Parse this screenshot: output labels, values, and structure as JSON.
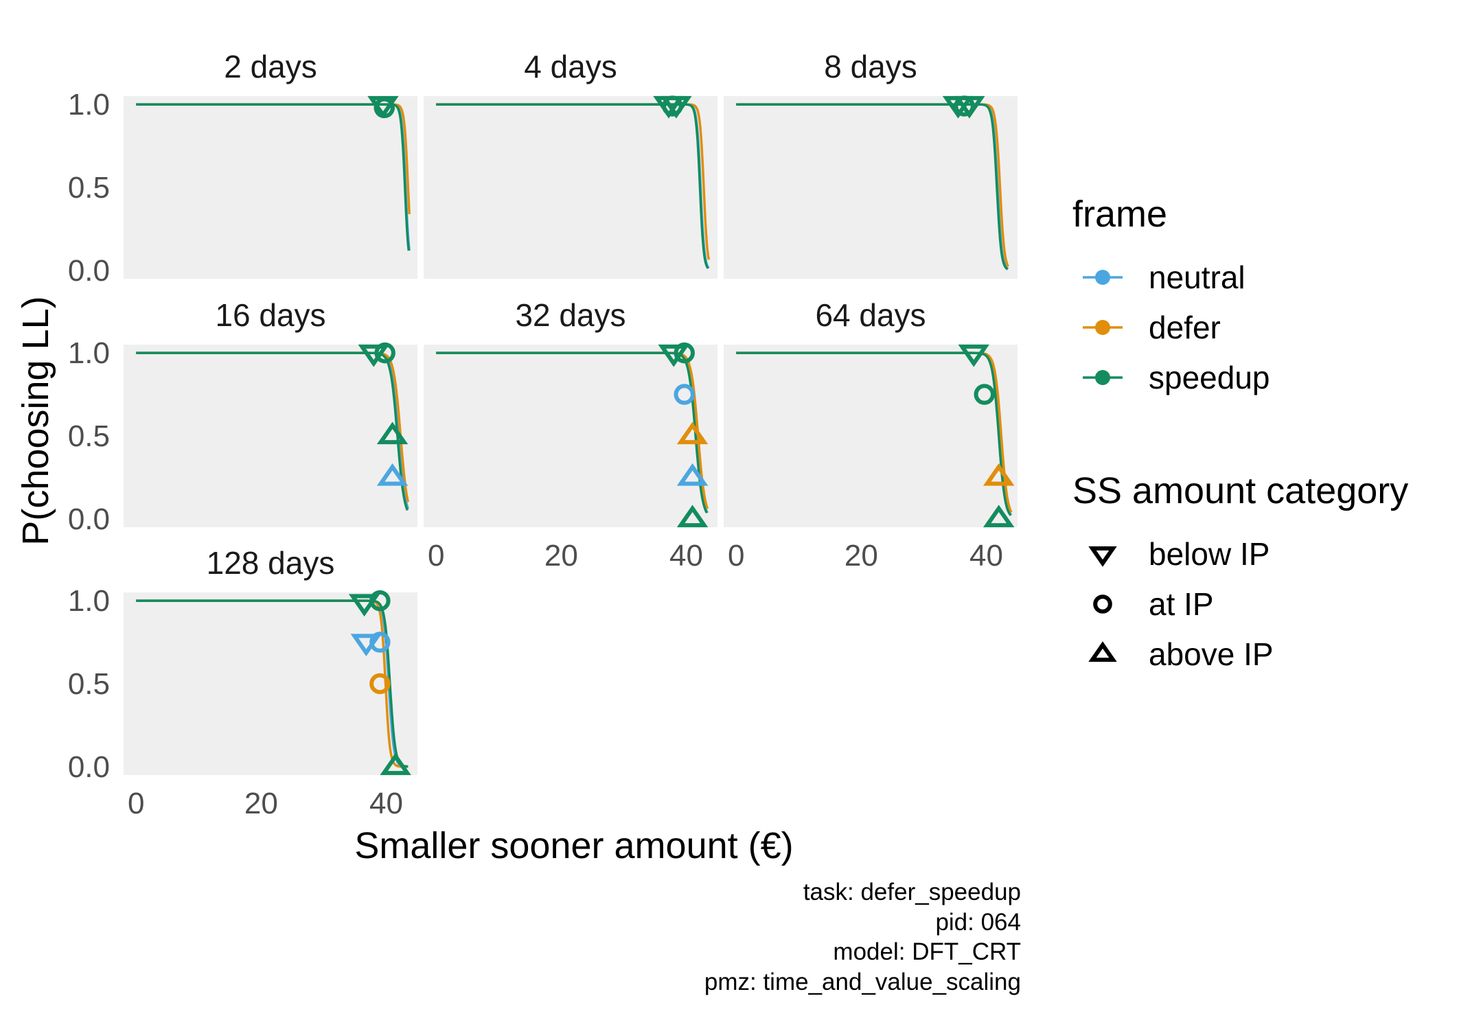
{
  "chart_data": {
    "type": "line",
    "xlabel": "Smaller sooner amount (€)",
    "ylabel": "P(choosing LL)",
    "xlim": [
      -2,
      45
    ],
    "ylim": [
      -0.05,
      1.05
    ],
    "x_ticks": [
      0,
      20,
      40
    ],
    "x_tick_labels": [
      "0",
      "20",
      "40"
    ],
    "y_ticks": [
      0,
      0.5,
      1
    ],
    "y_tick_labels": [
      "0.0",
      "0.5",
      "1.0"
    ],
    "grid": false,
    "facet_layout": "3 columns, 3 rows",
    "legend_placement": "right",
    "frames": [
      {
        "key": "neutral",
        "label": "neutral",
        "color": "#4BA6E0"
      },
      {
        "key": "defer",
        "label": "defer",
        "color": "#E08E0B"
      },
      {
        "key": "speedup",
        "label": "speedup",
        "color": "#138C5F"
      }
    ],
    "frame_legend_title": "frame",
    "shape_legend_title": "SS amount category",
    "categories": [
      {
        "key": "below",
        "label": "below IP",
        "shape": "triangle-down"
      },
      {
        "key": "at",
        "label": "at IP",
        "shape": "circle"
      },
      {
        "key": "above",
        "label": "above IP",
        "shape": "triangle-up"
      }
    ],
    "panels": [
      {
        "title": "2 days",
        "curves": [
          {
            "frame": "neutral",
            "midpoint": 43.1,
            "slope": 0.3,
            "x_end": 43.7
          },
          {
            "frame": "defer",
            "midpoint": 43.5,
            "slope": 0.3,
            "x_end": 43.7
          },
          {
            "frame": "speedup",
            "midpoint": 43.0,
            "slope": 0.3,
            "x_end": 43.6
          }
        ],
        "points": [
          {
            "frame": "speedup",
            "category": "below",
            "x": 39.5,
            "y": 1.0
          },
          {
            "frame": "speedup",
            "category": "at",
            "x": 39.7,
            "y": 0.98
          }
        ]
      },
      {
        "title": "4 days",
        "curves": [
          {
            "frame": "neutral",
            "midpoint": 42.3,
            "slope": 0.3,
            "x_end": 43.6
          },
          {
            "frame": "defer",
            "midpoint": 42.8,
            "slope": 0.3,
            "x_end": 43.6
          },
          {
            "frame": "speedup",
            "midpoint": 42.2,
            "slope": 0.3,
            "x_end": 43.5
          }
        ],
        "points": [
          {
            "frame": "speedup",
            "category": "below",
            "x": 37.2,
            "y": 1.0
          },
          {
            "frame": "speedup",
            "category": "at",
            "x": 37.8,
            "y": 0.99
          },
          {
            "frame": "speedup",
            "category": "below",
            "x": 38.4,
            "y": 1.0
          }
        ]
      },
      {
        "title": "8 days",
        "curves": [
          {
            "frame": "neutral",
            "midpoint": 41.8,
            "slope": 0.35,
            "x_end": 43.5
          },
          {
            "frame": "defer",
            "midpoint": 42.2,
            "slope": 0.35,
            "x_end": 43.5
          },
          {
            "frame": "speedup",
            "midpoint": 41.7,
            "slope": 0.35,
            "x_end": 43.4
          }
        ],
        "points": [
          {
            "frame": "speedup",
            "category": "below",
            "x": 35.5,
            "y": 1.0
          },
          {
            "frame": "speedup",
            "category": "at",
            "x": 36.5,
            "y": 0.99
          },
          {
            "frame": "speedup",
            "category": "below",
            "x": 37.3,
            "y": 1.0
          }
        ]
      },
      {
        "title": "16 days",
        "curves": [
          {
            "frame": "neutral",
            "midpoint": 42.0,
            "slope": 0.55,
            "x_end": 43.5
          },
          {
            "frame": "defer",
            "midpoint": 42.3,
            "slope": 0.55,
            "x_end": 43.5
          },
          {
            "frame": "speedup",
            "midpoint": 41.8,
            "slope": 0.55,
            "x_end": 43.4
          }
        ],
        "points": [
          {
            "frame": "speedup",
            "category": "below",
            "x": 38.0,
            "y": 1.0
          },
          {
            "frame": "speedup",
            "category": "at",
            "x": 39.8,
            "y": 1.0
          },
          {
            "frame": "speedup",
            "category": "above",
            "x": 41.0,
            "y": 0.5
          },
          {
            "frame": "neutral",
            "category": "above",
            "x": 41.0,
            "y": 0.25
          }
        ]
      },
      {
        "title": "32 days",
        "curves": [
          {
            "frame": "neutral",
            "midpoint": 41.6,
            "slope": 0.55,
            "x_end": 43.4
          },
          {
            "frame": "defer",
            "midpoint": 41.9,
            "slope": 0.55,
            "x_end": 43.4
          },
          {
            "frame": "speedup",
            "midpoint": 41.5,
            "slope": 0.55,
            "x_end": 43.3
          }
        ],
        "points": [
          {
            "frame": "speedup",
            "category": "below",
            "x": 38.0,
            "y": 1.0
          },
          {
            "frame": "speedup",
            "category": "at",
            "x": 39.7,
            "y": 1.0
          },
          {
            "frame": "neutral",
            "category": "at",
            "x": 39.7,
            "y": 0.75
          },
          {
            "frame": "defer",
            "category": "above",
            "x": 41.0,
            "y": 0.5
          },
          {
            "frame": "neutral",
            "category": "above",
            "x": 41.0,
            "y": 0.25
          },
          {
            "frame": "speedup",
            "category": "above",
            "x": 41.0,
            "y": 0.0
          }
        ]
      },
      {
        "title": "64 days",
        "curves": [
          {
            "frame": "neutral",
            "midpoint": 42.1,
            "slope": 0.5,
            "x_end": 44.0
          },
          {
            "frame": "defer",
            "midpoint": 42.4,
            "slope": 0.5,
            "x_end": 44.0
          },
          {
            "frame": "speedup",
            "midpoint": 42.0,
            "slope": 0.5,
            "x_end": 43.9
          }
        ],
        "points": [
          {
            "frame": "speedup",
            "category": "below",
            "x": 38.0,
            "y": 1.0
          },
          {
            "frame": "speedup",
            "category": "at",
            "x": 39.7,
            "y": 0.75
          },
          {
            "frame": "defer",
            "category": "above",
            "x": 42.0,
            "y": 0.25
          },
          {
            "frame": "speedup",
            "category": "above",
            "x": 42.0,
            "y": 0.0
          }
        ]
      },
      {
        "title": "128 days",
        "curves": [
          {
            "frame": "neutral",
            "midpoint": 40.4,
            "slope": 0.4,
            "x_end": 43.5
          },
          {
            "frame": "defer",
            "midpoint": 39.9,
            "slope": 0.35,
            "x_end": 43.5
          },
          {
            "frame": "speedup",
            "midpoint": 40.6,
            "slope": 0.42,
            "x_end": 43.5
          }
        ],
        "points": [
          {
            "frame": "speedup",
            "category": "below",
            "x": 36.5,
            "y": 0.99
          },
          {
            "frame": "speedup",
            "category": "at",
            "x": 39.0,
            "y": 1.0
          },
          {
            "frame": "neutral",
            "category": "below",
            "x": 36.8,
            "y": 0.75
          },
          {
            "frame": "neutral",
            "category": "at",
            "x": 39.0,
            "y": 0.75
          },
          {
            "frame": "defer",
            "category": "at",
            "x": 39.0,
            "y": 0.5
          },
          {
            "frame": "speedup",
            "category": "above",
            "x": 41.5,
            "y": 0.0
          }
        ]
      }
    ]
  },
  "caption": {
    "lines": [
      "task: defer_speedup",
      "pid: 064",
      "model: DFT_CRT",
      "pmz: time_and_value_scaling"
    ]
  }
}
